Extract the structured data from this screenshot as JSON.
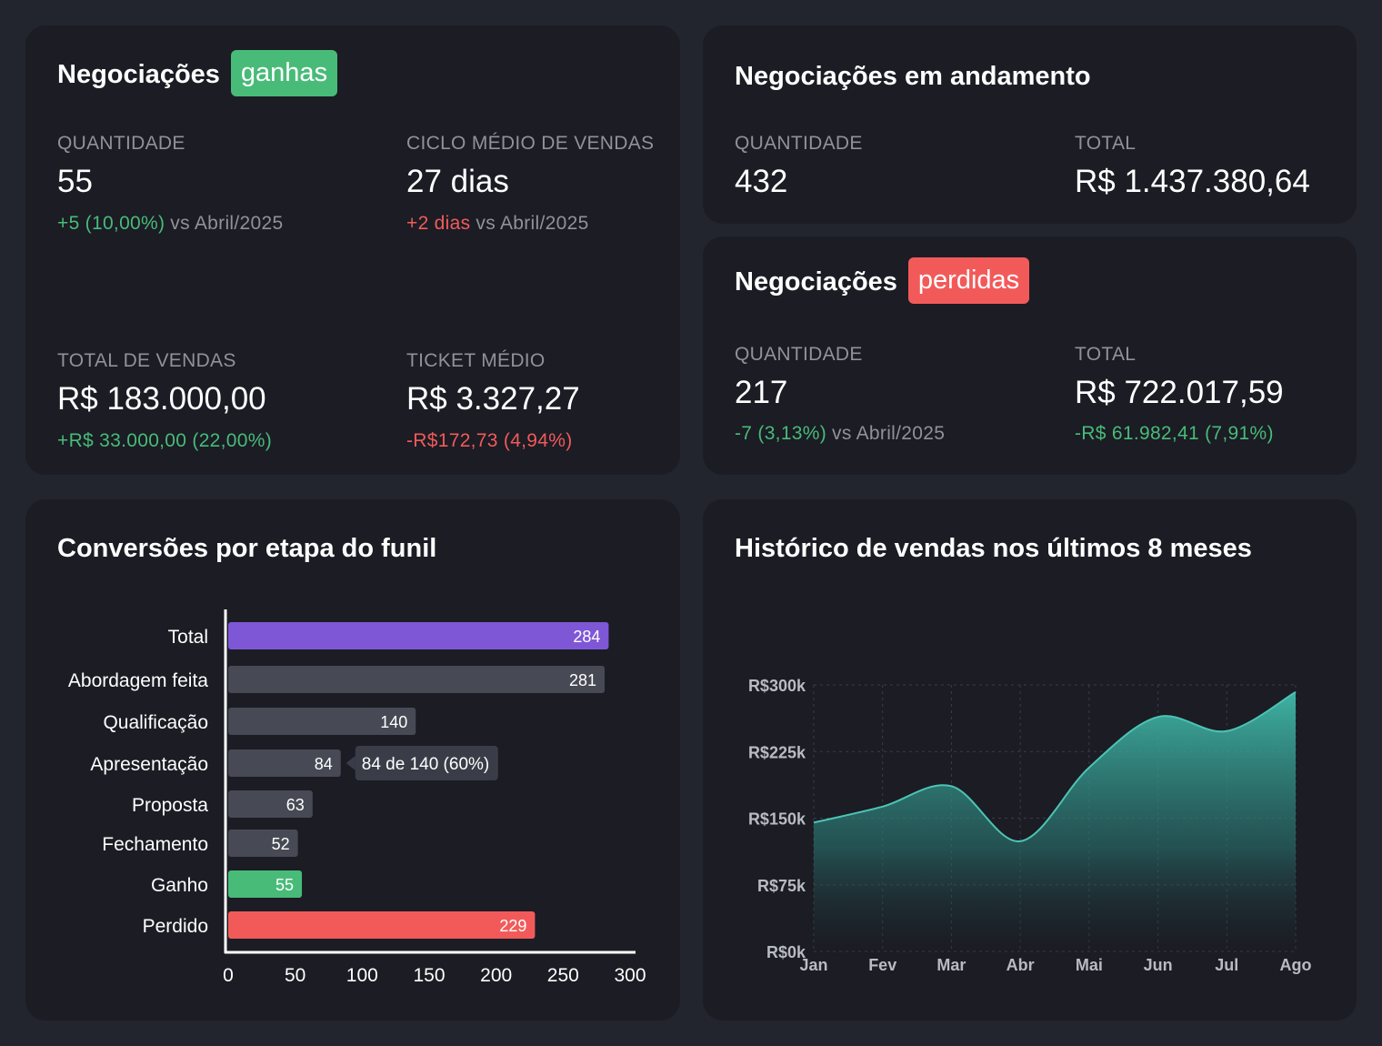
{
  "colors": {
    "green": "#48bb78",
    "red": "#f25a5a",
    "purple": "#7e57d6",
    "gray_bar": "#474a54",
    "teal": "#3fb5a6"
  },
  "won": {
    "title": "Negociações",
    "badge": "ganhas",
    "quantidade": {
      "label": "QUANTIDADE",
      "value": "55",
      "delta": "+5 (10,00%)",
      "vs": "vs Abril/2025"
    },
    "ciclo": {
      "label": "CICLO MÉDIO DE VENDAS",
      "value": "27 dias",
      "delta": "+2 dias",
      "vs": "vs Abril/2025"
    },
    "total_vendas": {
      "label": "TOTAL DE VENDAS",
      "value": "R$ 183.000,00",
      "delta": "+R$ 33.000,00 (22,00%)"
    },
    "ticket": {
      "label": "TICKET MÉDIO",
      "value": "R$ 3.327,27",
      "delta": "-R$172,73 (4,94%)"
    }
  },
  "in_progress": {
    "title": "Negociações em andamento",
    "quantidade": {
      "label": "QUANTIDADE",
      "value": "432"
    },
    "total": {
      "label": "TOTAL",
      "value": "R$ 1.437.380,64"
    }
  },
  "lost": {
    "title": "Negociações",
    "badge": "perdidas",
    "quantidade": {
      "label": "QUANTIDADE",
      "value": "217",
      "delta": "-7 (3,13%)",
      "vs": "vs Abril/2025"
    },
    "total": {
      "label": "TOTAL",
      "value": "R$ 722.017,59",
      "delta": "-R$ 61.982,41 (7,91%)"
    }
  },
  "funnel": {
    "title": "Conversões por etapa do funil",
    "tooltip": "84 de 140 (60%)",
    "chart_data": {
      "type": "bar",
      "orientation": "horizontal",
      "categories": [
        "Total",
        "Abordagem feita",
        "Qualificação",
        "Apresentação",
        "Proposta",
        "Fechamento",
        "Ganho",
        "Perdido"
      ],
      "values": [
        284,
        281,
        140,
        84,
        63,
        52,
        55,
        229
      ],
      "bar_colors": [
        "#7e57d6",
        "#474a54",
        "#474a54",
        "#474a54",
        "#474a54",
        "#474a54",
        "#48bb78",
        "#f25a5a"
      ],
      "xlim": [
        0,
        300
      ],
      "xticks": [
        "0",
        "50",
        "100",
        "150",
        "200",
        "250",
        "300"
      ]
    }
  },
  "history": {
    "title": "Histórico de vendas nos últimos 8 meses",
    "chart_data": {
      "type": "area",
      "categories": [
        "Jan",
        "Fev",
        "Mar",
        "Abr",
        "Mai",
        "Jun",
        "Jul",
        "Ago"
      ],
      "values": [
        145000,
        163000,
        186000,
        124000,
        207000,
        264000,
        248000,
        292000
      ],
      "ylim": [
        0,
        300000
      ],
      "yticks": [
        "R$0k",
        "R$75k",
        "R$150k",
        "R$225k",
        "R$300k"
      ],
      "grid": true
    }
  }
}
